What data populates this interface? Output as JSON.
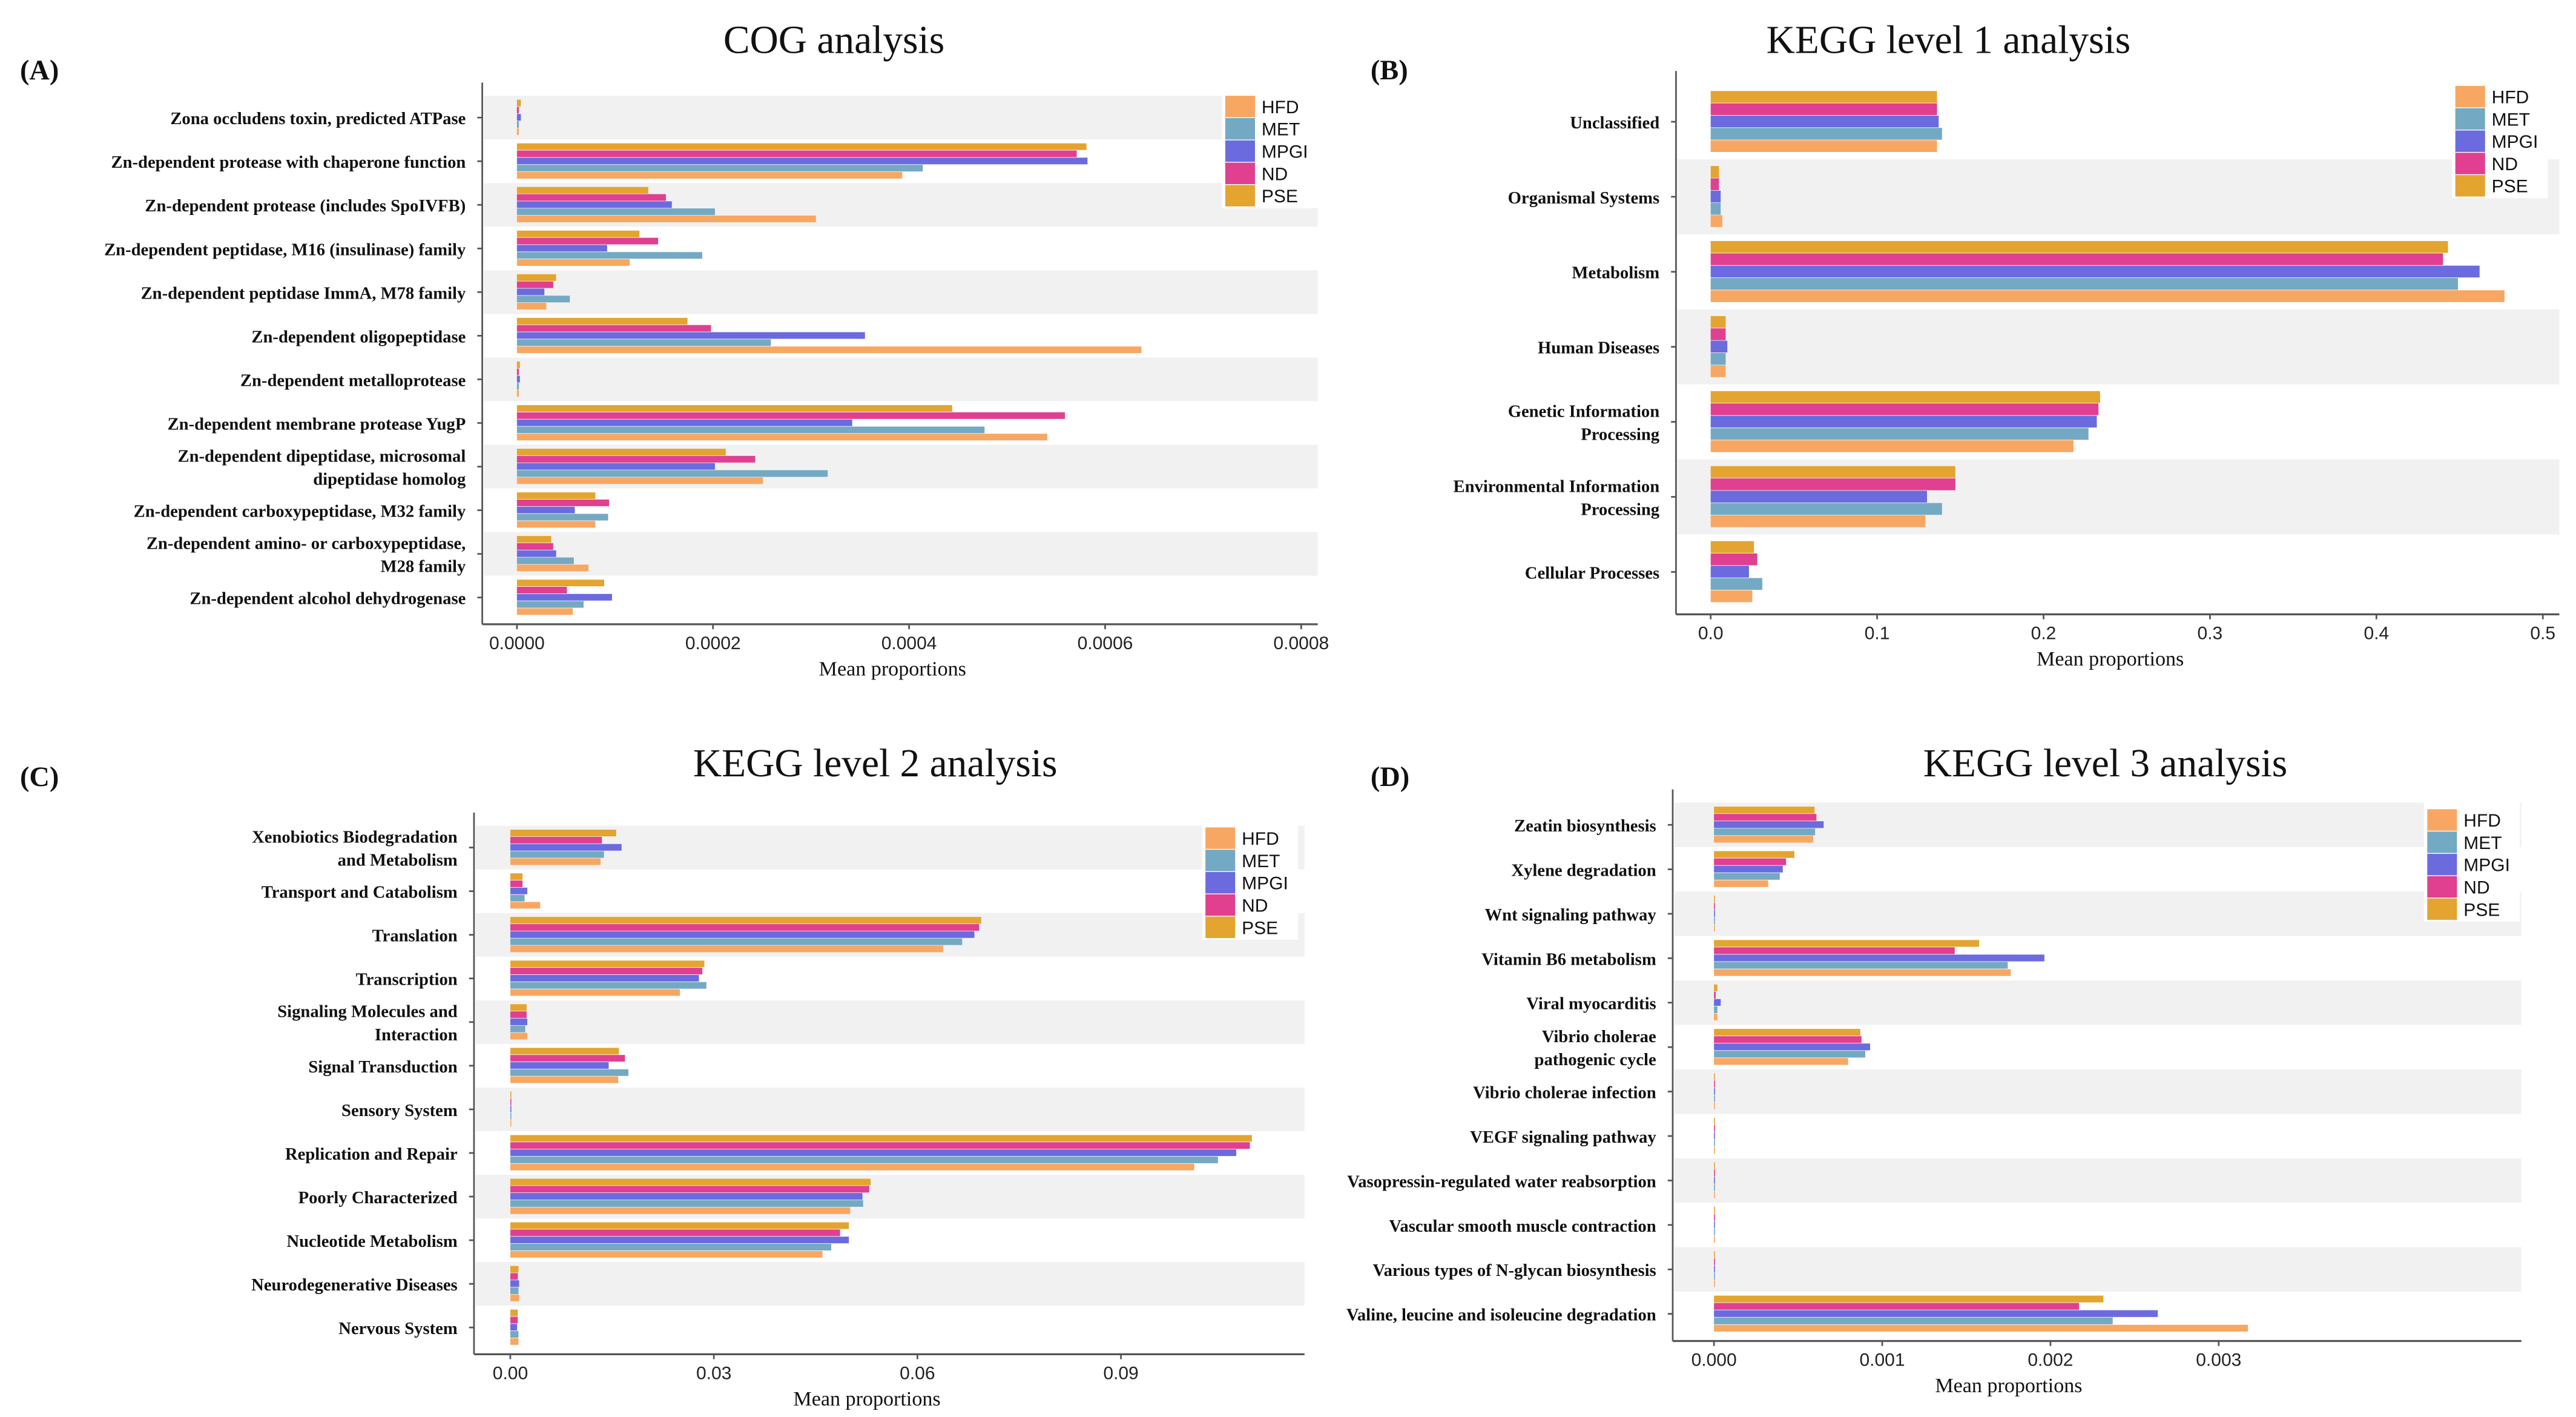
{
  "series_colors": {
    "HFD": "#F8A762",
    "MET": "#74A9C4",
    "MPGI": "#6B6BDF",
    "ND": "#E0408F",
    "PSE": "#E3A530"
  },
  "legend": [
    "HFD",
    "MET",
    "MPGI",
    "ND",
    "PSE"
  ],
  "chart_data": [
    {
      "panel": "(A)",
      "type": "bar",
      "orientation": "horizontal",
      "title": "COG analysis",
      "xlabel": "Mean proportions",
      "xlim": [
        0,
        0.0008
      ],
      "xticks": [
        "0.0000",
        "0.0002",
        "0.0004",
        "0.0006",
        "0.0008"
      ],
      "categories": [
        "Zona occludens toxin, predicted ATPase",
        "Zn-dependent protease with chaperone function",
        "Zn-dependent protease (includes SpoIVFB)",
        "Zn-dependent peptidase, M16 (insulinase) family",
        "Zn-dependent peptidase ImmA, M78 family",
        "Zn-dependent oligopeptidase",
        "Zn-dependent metalloprotease",
        "Zn-dependent membrane protease YugP",
        "Zn-dependent dipeptidase, microsomal\ndipeptidase homolog",
        "Zn-dependent carboxypeptidase, M32 family",
        "Zn-dependent amino- or carboxypeptidase,\nM28 family",
        "Zn-dependent alcohol dehydrogenase"
      ],
      "series": [
        {
          "name": "PSE",
          "values": [
            4e-06,
            0.000581,
            0.000134,
            0.000125,
            4e-05,
            0.000174,
            3e-06,
            0.000444,
            0.000213,
            8e-05,
            3.5e-05,
            8.9e-05
          ]
        },
        {
          "name": "ND",
          "values": [
            2e-06,
            0.000571,
            0.000152,
            0.000144,
            3.7e-05,
            0.000198,
            2e-06,
            0.000559,
            0.000243,
            9.4e-05,
            3.7e-05,
            5.1e-05
          ]
        },
        {
          "name": "MPGI",
          "values": [
            4e-06,
            0.000582,
            0.000158,
            9.2e-05,
            2.8e-05,
            0.000355,
            3e-06,
            0.000342,
            0.000202,
            5.9e-05,
            4e-05,
            9.7e-05
          ]
        },
        {
          "name": "MET",
          "values": [
            2e-06,
            0.000414,
            0.000202,
            0.000189,
            5.4e-05,
            0.000259,
            2e-06,
            0.000477,
            0.000317,
            9.3e-05,
            5.8e-05,
            6.8e-05
          ]
        },
        {
          "name": "HFD",
          "values": [
            2e-06,
            0.000393,
            0.000305,
            0.000115,
            3e-05,
            0.000637,
            2e-06,
            0.000541,
            0.000251,
            8e-05,
            7.3e-05,
            5.7e-05
          ]
        }
      ]
    },
    {
      "panel": "(B)",
      "type": "bar",
      "orientation": "horizontal",
      "title": "KEGG level 1 analysis",
      "xlabel": "Mean proportions",
      "xlim": [
        0,
        0.5
      ],
      "xticks": [
        "0.0",
        "0.1",
        "0.2",
        "0.3",
        "0.4",
        "0.5"
      ],
      "categories": [
        "Unclassified",
        "Organismal Systems",
        "Metabolism",
        "Human Diseases",
        "Genetic Information\nProcessing",
        "Environmental Information\nProcessing",
        "Cellular Processes"
      ],
      "series": [
        {
          "name": "PSE",
          "values": [
            0.136,
            0.005,
            0.443,
            0.009,
            0.234,
            0.147,
            0.026
          ]
        },
        {
          "name": "ND",
          "values": [
            0.136,
            0.005,
            0.44,
            0.009,
            0.233,
            0.147,
            0.028
          ]
        },
        {
          "name": "MPGI",
          "values": [
            0.137,
            0.006,
            0.462,
            0.01,
            0.232,
            0.13,
            0.023
          ]
        },
        {
          "name": "MET",
          "values": [
            0.139,
            0.006,
            0.449,
            0.009,
            0.227,
            0.139,
            0.031
          ]
        },
        {
          "name": "HFD",
          "values": [
            0.136,
            0.007,
            0.477,
            0.009,
            0.218,
            0.129,
            0.025
          ]
        }
      ]
    },
    {
      "panel": "(C)",
      "type": "bar",
      "orientation": "horizontal",
      "title": "KEGG level 2 analysis",
      "xlabel": "Mean proportions",
      "xlim": [
        0,
        0.11
      ],
      "xticks": [
        "0.00",
        "0.03",
        "0.06",
        "0.09"
      ],
      "categories": [
        "Xenobiotics Biodegradation\nand Metabolism",
        "Transport and Catabolism",
        "Translation",
        "Transcription",
        "Signaling Molecules and\nInteraction",
        "Signal Transduction",
        "Sensory System",
        "Replication and Repair",
        "Poorly Characterized",
        "Nucleotide Metabolism",
        "Neurodegenerative Diseases",
        "Nervous System"
      ],
      "series": [
        {
          "name": "PSE",
          "values": [
            0.0156,
            0.0018,
            0.0694,
            0.0286,
            0.0024,
            0.016,
            0.0001,
            0.1093,
            0.0531,
            0.0499,
            0.0012,
            0.0011
          ]
        },
        {
          "name": "ND",
          "values": [
            0.0135,
            0.0018,
            0.0691,
            0.0283,
            0.0024,
            0.0169,
            0.0001,
            0.109,
            0.0529,
            0.0486,
            0.0011,
            0.0011
          ]
        },
        {
          "name": "MPGI",
          "values": [
            0.0164,
            0.0025,
            0.0684,
            0.0278,
            0.0025,
            0.0145,
            0.0001,
            0.107,
            0.0519,
            0.0499,
            0.0013,
            0.001
          ]
        },
        {
          "name": "MET",
          "values": [
            0.0138,
            0.0021,
            0.0666,
            0.0289,
            0.0022,
            0.0174,
            0.0001,
            0.1043,
            0.052,
            0.0473,
            0.0012,
            0.0012
          ]
        },
        {
          "name": "HFD",
          "values": [
            0.0133,
            0.0044,
            0.0638,
            0.025,
            0.0025,
            0.0159,
            0.0001,
            0.1008,
            0.0501,
            0.046,
            0.0013,
            0.0012
          ]
        }
      ]
    },
    {
      "panel": "(D)",
      "type": "bar",
      "orientation": "horizontal",
      "title": "KEGG level 3 analysis",
      "xlabel": "Mean proportions",
      "xlim": [
        0,
        0.0037
      ],
      "xticks": [
        "0.000",
        "0.001",
        "0.002",
        "0.003"
      ],
      "categories": [
        "Zeatin biosynthesis",
        "Xylene degradation",
        "Wnt signaling pathway",
        "Vitamin B6 metabolism",
        "Viral myocarditis",
        "Vibrio cholerae\npathogenic cycle",
        "Vibrio cholerae infection",
        "VEGF signaling pathway",
        "Vasopressin-regulated water reabsorption",
        "Vascular smooth muscle contraction",
        "Various types of N-glycan biosynthesis",
        "Valine, leucine and isoleucine degradation"
      ],
      "series": [
        {
          "name": "PSE",
          "values": [
            0.000598,
            0.000478,
            2e-06,
            0.001576,
            2e-05,
            0.00087,
            3e-06,
            1e-06,
            1e-06,
            1e-06,
            4e-06,
            0.002315
          ]
        },
        {
          "name": "ND",
          "values": [
            0.000609,
            0.000428,
            2e-06,
            0.001431,
            1e-05,
            0.000877,
            3e-06,
            1e-06,
            1e-06,
            1e-06,
            4e-06,
            0.00217
          ]
        },
        {
          "name": "MPGI",
          "values": [
            0.000652,
            0.000409,
            2e-06,
            0.001964,
            4e-05,
            0.000928,
            3e-06,
            1e-06,
            1e-06,
            1e-06,
            5e-06,
            0.002638
          ]
        },
        {
          "name": "MET",
          "values": [
            0.000601,
            0.000391,
            2e-06,
            0.001746,
            2e-05,
            0.000899,
            3e-06,
            1e-06,
            1e-06,
            1e-06,
            6e-06,
            0.00237
          ]
        },
        {
          "name": "HFD",
          "values": [
            0.00059,
            0.000322,
            2e-06,
            0.001764,
            2e-05,
            0.000797,
            3e-06,
            1e-06,
            1e-06,
            1e-06,
            4e-06,
            0.003174
          ]
        }
      ]
    }
  ]
}
